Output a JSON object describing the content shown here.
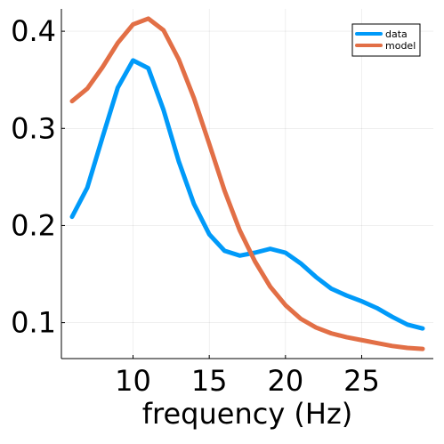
{
  "chart_data": {
    "type": "line",
    "title": "",
    "xlabel": "frequency (Hz)",
    "ylabel": "",
    "xlim": [
      5.3,
      29.7
    ],
    "ylim": [
      0.063,
      0.423
    ],
    "xticks": [
      10,
      15,
      20,
      25
    ],
    "yticks": [
      0.1,
      0.2,
      0.3,
      0.4
    ],
    "xtick_labels": [
      "10",
      "15",
      "20",
      "25"
    ],
    "ytick_labels": [
      "0.1",
      "0.2",
      "0.3",
      "0.4"
    ],
    "grid": true,
    "legend_position": "top-right",
    "x": [
      6,
      7,
      8,
      9,
      10,
      11,
      12,
      13,
      14,
      15,
      16,
      17,
      18,
      19,
      20,
      21,
      22,
      23,
      24,
      25,
      26,
      27,
      28,
      29
    ],
    "series": [
      {
        "name": "data",
        "color": "#009af9",
        "values": [
          0.209,
          0.239,
          0.291,
          0.342,
          0.37,
          0.362,
          0.319,
          0.266,
          0.222,
          0.191,
          0.174,
          0.169,
          0.172,
          0.176,
          0.172,
          0.161,
          0.147,
          0.135,
          0.128,
          0.122,
          0.115,
          0.106,
          0.098,
          0.094
        ]
      },
      {
        "name": "model",
        "color": "#e26f46",
        "values": [
          0.328,
          0.341,
          0.363,
          0.388,
          0.407,
          0.413,
          0.401,
          0.371,
          0.331,
          0.284,
          0.236,
          0.195,
          0.163,
          0.137,
          0.118,
          0.104,
          0.095,
          0.089,
          0.085,
          0.082,
          0.079,
          0.076,
          0.074,
          0.073
        ]
      }
    ]
  }
}
